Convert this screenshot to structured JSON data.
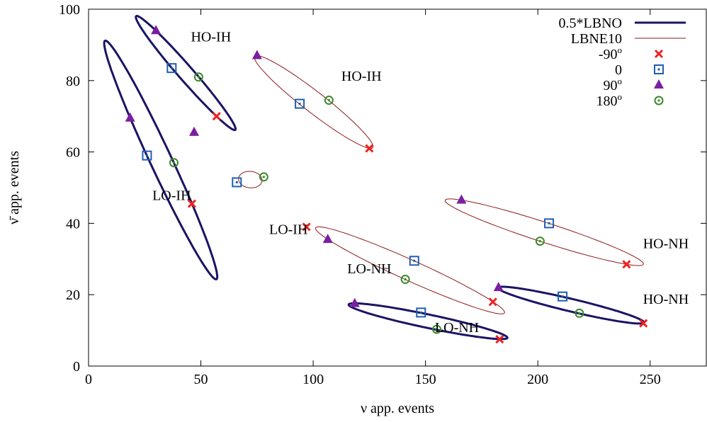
{
  "chart_data": {
    "type": "scatter",
    "xlabel": "ν app. events",
    "ylabel": "ν̄ app. events",
    "xlim": [
      0,
      275
    ],
    "ylim": [
      0,
      100
    ],
    "x_ticks": [
      0,
      50,
      100,
      150,
      200,
      250
    ],
    "y_ticks": [
      0,
      20,
      40,
      60,
      80,
      100
    ],
    "grid": false,
    "legend_position": "top-right",
    "legend": [
      {
        "label": "0.5*LBNO",
        "kind": "line",
        "color": "#1b1464",
        "width": 3
      },
      {
        "label": "LBNE10",
        "kind": "line",
        "color": "#8b1a1a",
        "width": 1
      },
      {
        "label": "-90",
        "sup": "o",
        "kind": "marker",
        "marker": "cross",
        "color": "#ee2222"
      },
      {
        "label": "0",
        "sup": "",
        "kind": "marker",
        "marker": "square",
        "color": "#1f5fb0"
      },
      {
        "label": "90",
        "sup": "o",
        "kind": "marker",
        "marker": "triangle",
        "color": "#7a1fa2"
      },
      {
        "label": "180",
        "sup": "o",
        "kind": "marker",
        "marker": "circle",
        "color": "#3a8a2a"
      }
    ],
    "ellipses": [
      {
        "name": "HO-IH",
        "series": "0.5*LBNO",
        "points": {
          "m90": [
            57,
            70
          ],
          "d0": [
            37,
            83.5
          ],
          "p90": [
            30,
            94
          ],
          "d180": [
            49,
            81
          ]
        }
      },
      {
        "name": "LO-IH",
        "series": "0.5*LBNO",
        "points": {
          "m90": [
            46,
            45.5
          ],
          "d0": [
            26,
            59
          ],
          "p90": [
            18.5,
            69.5
          ],
          "d180": [
            38,
            57
          ]
        }
      },
      {
        "name": "LO-NH",
        "series": "0.5*LBNO",
        "points": {
          "m90": [
            183,
            7.5
          ],
          "d0": [
            148,
            15
          ],
          "p90": [
            118.5,
            17.5
          ],
          "d180": [
            155,
            10.3
          ]
        }
      },
      {
        "name": "HO-NH",
        "series": "0.5*LBNO",
        "points": {
          "m90": [
            247,
            12
          ],
          "d0": [
            211,
            19.5
          ],
          "p90": [
            182.5,
            22
          ],
          "d180": [
            218.5,
            14.8
          ]
        }
      },
      {
        "name": "HO-IH",
        "series": "LBNE10",
        "points": {
          "m90": [
            125,
            61
          ],
          "d0": [
            94,
            73.5
          ],
          "p90": [
            75,
            87
          ],
          "d180": [
            107,
            74.5
          ]
        }
      },
      {
        "name": "LO-IH",
        "series": "LBNE10",
        "points": {
          "m90": [
            97,
            39
          ],
          "d0": [
            66,
            51.5
          ],
          "p90": [
            47,
            65.5
          ],
          "d180": [
            78,
            53
          ]
        }
      },
      {
        "name": "LO-NH",
        "series": "LBNE10",
        "points": {
          "m90": [
            180,
            18
          ],
          "d0": [
            145,
            29.5
          ],
          "p90": [
            106.5,
            35.5
          ],
          "d180": [
            141,
            24.3
          ]
        }
      },
      {
        "name": "HO-NH",
        "series": "LBNE10",
        "points": {
          "m90": [
            239.5,
            28.5
          ],
          "d0": [
            205,
            40
          ],
          "p90": [
            166,
            46.5
          ],
          "d180": [
            201,
            35
          ]
        }
      }
    ],
    "annotations": [
      {
        "text": "HO-IH",
        "x": 54.5,
        "y": 91
      },
      {
        "text": "HO-IH",
        "x": 121.5,
        "y": 80
      },
      {
        "text": "LO-IH",
        "x": 37,
        "y": 46.5
      },
      {
        "text": "LO-IH",
        "x": 89,
        "y": 37
      },
      {
        "text": "LO-NH",
        "x": 125,
        "y": 26
      },
      {
        "text": "LO-NH",
        "x": 164,
        "y": 9.5
      },
      {
        "text": "HO-NH",
        "x": 257,
        "y": 33
      },
      {
        "text": "HO-NH",
        "x": 257,
        "y": 17.5
      }
    ]
  }
}
